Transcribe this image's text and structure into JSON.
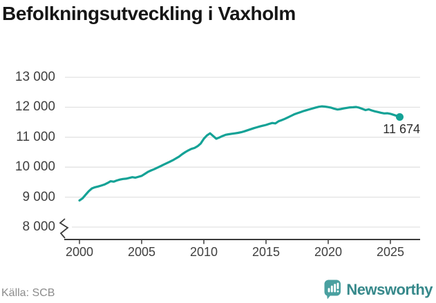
{
  "title": "Befolkningsutveckling i Vaxholm",
  "source": "Källa: SCB",
  "branding": {
    "name": "Newsworthy"
  },
  "colors": {
    "background": "#ffffff",
    "line": "#14a296",
    "grid": "#e2e2e2",
    "axis": "#3a3a3a",
    "title": "#161616",
    "tick_label": "#3f3f3f",
    "end_label": "#2b2b2b",
    "source": "#8c8c8c",
    "brand_text": "#37898b",
    "brand_icon": "#4aa0a0"
  },
  "chart_data": {
    "type": "line",
    "title": "Befolkningsutveckling i Vaxholm",
    "xlabel": "",
    "ylabel": "",
    "grid": "horizontal",
    "legend": "none",
    "axis_break": true,
    "ylim": [
      8000,
      13000
    ],
    "xlim": [
      1999,
      2027
    ],
    "x_ticks": [
      2000,
      2005,
      2010,
      2015,
      2020,
      2025
    ],
    "x_tick_labels": [
      "2000",
      "2005",
      "2010",
      "2015",
      "2020",
      "2025"
    ],
    "y_ticks": [
      8000,
      9000,
      10000,
      11000,
      12000,
      13000
    ],
    "y_tick_labels": [
      "8 000",
      "9 000",
      "10 000",
      "11 000",
      "12 000",
      "13 000"
    ],
    "end_label": "11 674",
    "x": [
      2000,
      2000.25,
      2000.5,
      2000.75,
      2001,
      2001.25,
      2001.5,
      2001.75,
      2002,
      2002.25,
      2002.5,
      2002.75,
      2003,
      2003.25,
      2003.5,
      2003.75,
      2004,
      2004.25,
      2004.5,
      2004.75,
      2005,
      2005.25,
      2005.5,
      2005.75,
      2006,
      2006.25,
      2006.5,
      2006.75,
      2007,
      2007.25,
      2007.5,
      2007.75,
      2008,
      2008.25,
      2008.5,
      2008.75,
      2009,
      2009.25,
      2009.5,
      2009.75,
      2010,
      2010.25,
      2010.5,
      2010.75,
      2011,
      2011.25,
      2011.5,
      2011.75,
      2012,
      2012.25,
      2012.5,
      2012.75,
      2013,
      2013.25,
      2013.5,
      2013.75,
      2014,
      2014.25,
      2014.5,
      2014.75,
      2015,
      2015.25,
      2015.5,
      2015.75,
      2016,
      2016.25,
      2016.5,
      2016.75,
      2017,
      2017.25,
      2017.5,
      2017.75,
      2018,
      2018.25,
      2018.5,
      2018.75,
      2019,
      2019.25,
      2019.5,
      2019.75,
      2020,
      2020.25,
      2020.5,
      2020.75,
      2021,
      2021.25,
      2021.5,
      2021.75,
      2022,
      2022.25,
      2022.5,
      2022.75,
      2023,
      2023.25,
      2023.5,
      2023.75,
      2024,
      2024.25,
      2024.5,
      2024.75,
      2025,
      2025.25,
      2025.5,
      2025.75
    ],
    "values": [
      8890,
      8960,
      9080,
      9200,
      9290,
      9330,
      9355,
      9385,
      9420,
      9470,
      9530,
      9515,
      9555,
      9585,
      9605,
      9615,
      9640,
      9665,
      9650,
      9680,
      9710,
      9775,
      9840,
      9890,
      9930,
      9980,
      10030,
      10080,
      10130,
      10180,
      10230,
      10290,
      10350,
      10430,
      10500,
      10560,
      10610,
      10640,
      10700,
      10790,
      10950,
      11060,
      11130,
      11040,
      10950,
      10990,
      11040,
      11080,
      11100,
      11115,
      11130,
      11145,
      11165,
      11195,
      11230,
      11265,
      11300,
      11330,
      11360,
      11385,
      11410,
      11445,
      11475,
      11460,
      11530,
      11570,
      11610,
      11660,
      11710,
      11760,
      11800,
      11835,
      11870,
      11900,
      11930,
      11960,
      11990,
      12015,
      12030,
      12020,
      12005,
      11985,
      11950,
      11925,
      11940,
      11960,
      11980,
      11995,
      12000,
      12010,
      11985,
      11945,
      11905,
      11930,
      11895,
      11865,
      11840,
      11815,
      11795,
      11800,
      11780,
      11750,
      11715,
      11674
    ]
  }
}
